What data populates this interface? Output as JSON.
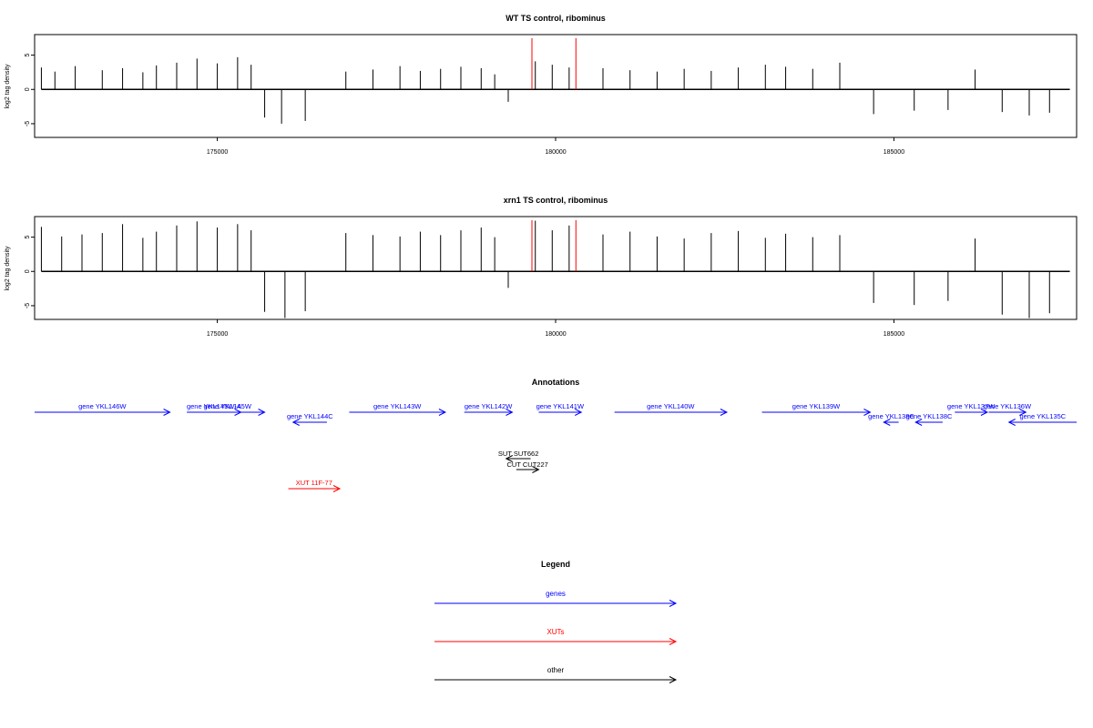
{
  "chart_data": [
    {
      "type": "bar",
      "title": "WT TS control, ribominus",
      "ylabel": "log2 tag density",
      "xlim": [
        172300,
        187700
      ],
      "ylim": [
        -7,
        8
      ],
      "x_ticks": [
        175000,
        180000,
        185000
      ],
      "y_ticks": [
        -5,
        0,
        5
      ],
      "x_tick_labels": [
        "175000",
        "180000",
        "185000"
      ],
      "y_tick_labels": [
        "-5",
        "0",
        "5"
      ],
      "series": [
        {
          "values": [
            [
              172400,
              3.2
            ],
            [
              172600,
              2.6
            ],
            [
              172900,
              3.4
            ],
            [
              173300,
              2.8
            ],
            [
              173600,
              3.1
            ],
            [
              173900,
              2.5
            ],
            [
              174100,
              3.5
            ],
            [
              174400,
              3.9
            ],
            [
              174700,
              4.5
            ],
            [
              175000,
              3.8
            ],
            [
              175300,
              4.7
            ],
            [
              175500,
              3.6
            ],
            [
              175700,
              -4.1
            ],
            [
              175950,
              -5.0
            ],
            [
              176300,
              -4.6
            ],
            [
              176900,
              2.6
            ],
            [
              177300,
              2.9
            ],
            [
              177700,
              3.4
            ],
            [
              178000,
              2.7
            ],
            [
              178300,
              3.0
            ],
            [
              178600,
              3.3
            ],
            [
              178900,
              3.1
            ],
            [
              179100,
              2.2
            ],
            [
              179300,
              -1.8
            ],
            [
              179700,
              4.1
            ],
            [
              179950,
              3.6
            ],
            [
              180200,
              3.2
            ],
            [
              180700,
              3.1
            ],
            [
              181100,
              2.8
            ],
            [
              181500,
              2.6
            ],
            [
              181900,
              3.0
            ],
            [
              182300,
              2.7
            ],
            [
              182700,
              3.2
            ],
            [
              183100,
              3.6
            ],
            [
              183400,
              3.3
            ],
            [
              183800,
              3.0
            ],
            [
              184200,
              3.9
            ],
            [
              184700,
              -3.6
            ],
            [
              185300,
              -3.1
            ],
            [
              185800,
              -3.0
            ],
            [
              186200,
              2.9
            ],
            [
              186600,
              -3.3
            ],
            [
              187000,
              -3.8
            ],
            [
              187300,
              -3.4
            ]
          ]
        }
      ],
      "highlights": [
        179650,
        180300
      ]
    },
    {
      "type": "bar",
      "title": "xrn1 TS control, ribominus",
      "ylabel": "log2 tag density",
      "xlim": [
        172300,
        187700
      ],
      "ylim": [
        -7,
        8
      ],
      "x_ticks": [
        175000,
        180000,
        185000
      ],
      "y_ticks": [
        -5,
        0,
        5
      ],
      "x_tick_labels": [
        "175000",
        "180000",
        "185000"
      ],
      "y_tick_labels": [
        "-5",
        "0",
        "5"
      ],
      "series": [
        {
          "values": [
            [
              172400,
              6.5
            ],
            [
              172700,
              5.1
            ],
            [
              173000,
              5.4
            ],
            [
              173300,
              5.6
            ],
            [
              173600,
              6.9
            ],
            [
              173900,
              4.9
            ],
            [
              174100,
              5.8
            ],
            [
              174400,
              6.7
            ],
            [
              174700,
              7.3
            ],
            [
              175000,
              6.4
            ],
            [
              175300,
              6.9
            ],
            [
              175500,
              6.0
            ],
            [
              175700,
              -5.9
            ],
            [
              176000,
              -6.8
            ],
            [
              176300,
              -5.8
            ],
            [
              176900,
              5.6
            ],
            [
              177300,
              5.3
            ],
            [
              177700,
              5.1
            ],
            [
              178000,
              5.8
            ],
            [
              178300,
              5.3
            ],
            [
              178600,
              6.0
            ],
            [
              178900,
              6.4
            ],
            [
              179100,
              5.0
            ],
            [
              179300,
              -2.4
            ],
            [
              179700,
              7.4
            ],
            [
              179950,
              6.0
            ],
            [
              180200,
              6.7
            ],
            [
              180700,
              5.4
            ],
            [
              181100,
              5.8
            ],
            [
              181500,
              5.1
            ],
            [
              181900,
              4.8
            ],
            [
              182300,
              5.6
            ],
            [
              182700,
              5.9
            ],
            [
              183100,
              4.9
            ],
            [
              183400,
              5.5
            ],
            [
              183800,
              5.0
            ],
            [
              184200,
              5.3
            ],
            [
              184700,
              -4.6
            ],
            [
              185300,
              -4.9
            ],
            [
              185800,
              -4.3
            ],
            [
              186200,
              4.8
            ],
            [
              186600,
              -6.3
            ],
            [
              187000,
              -6.8
            ],
            [
              187300,
              -6.1
            ]
          ]
        }
      ],
      "highlights": [
        179650,
        180300
      ]
    }
  ],
  "annotations": {
    "title": "Annotations",
    "genes": [
      {
        "label": "gene YKL146W",
        "start": 172300,
        "end": 174300,
        "strand": "+",
        "row": 0
      },
      {
        "label": "gene YKL145W-A",
        "start": 174550,
        "end": 175350,
        "strand": "+",
        "row": 0
      },
      {
        "label": "gene YKL145W",
        "start": 174600,
        "end": 175700,
        "strand": "+",
        "row": 0
      },
      {
        "label": "gene YKL144C",
        "start": 176120,
        "end": 176620,
        "strand": "-",
        "row": 1
      },
      {
        "label": "gene YKL143W",
        "start": 176950,
        "end": 178370,
        "strand": "+",
        "row": 0
      },
      {
        "label": "gene YKL142W",
        "start": 178650,
        "end": 179360,
        "strand": "+",
        "row": 0
      },
      {
        "label": "gene YKL141W",
        "start": 179750,
        "end": 180380,
        "strand": "+",
        "row": 0
      },
      {
        "label": "gene YKL140W",
        "start": 180870,
        "end": 182530,
        "strand": "+",
        "row": 0
      },
      {
        "label": "gene YKL139W",
        "start": 183050,
        "end": 184650,
        "strand": "+",
        "row": 0
      },
      {
        "label": "gene YKL138C",
        "start": 184850,
        "end": 185070,
        "strand": "-",
        "row": 1
      },
      {
        "label": "gene YKL138C",
        "start": 185320,
        "end": 185720,
        "strand": "-",
        "row": 1
      },
      {
        "label": "gene YKL137W",
        "start": 185900,
        "end": 186380,
        "strand": "+",
        "row": 0
      },
      {
        "label": "gene YKL136W",
        "start": 186400,
        "end": 186950,
        "strand": "+",
        "row": 0
      },
      {
        "label": "gene YKL135C",
        "start": 186700,
        "end": 188500,
        "strand": "-",
        "row": 1
      }
    ],
    "others": [
      {
        "label": "SUT SUT662",
        "start": 179270,
        "end": 179630,
        "strand": "-",
        "row": 0
      },
      {
        "label": "CUT CUT227",
        "start": 179420,
        "end": 179750,
        "strand": "+",
        "row": 1
      }
    ],
    "xuts": [
      {
        "label": "XUT 11F-77",
        "start": 176050,
        "end": 176810,
        "strand": "+",
        "row": 0
      }
    ]
  },
  "legend": {
    "title": "Legend",
    "items": [
      {
        "label": "genes",
        "color": "#0000ff"
      },
      {
        "label": "XUTs",
        "color": "#ff0000"
      },
      {
        "label": "other",
        "color": "#000000"
      }
    ]
  },
  "colors": {
    "genes": "#0000ff",
    "xuts": "#ff0000",
    "other": "#000000",
    "highlight": "#ff0000"
  }
}
